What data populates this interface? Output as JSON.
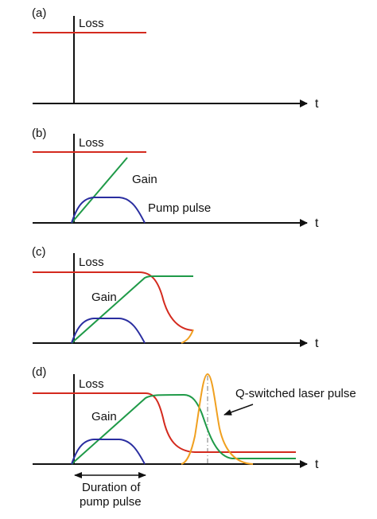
{
  "panels": [
    {
      "id": "a",
      "label": "(a)",
      "loss": "Loss",
      "axis": "t"
    },
    {
      "id": "b",
      "label": "(b)",
      "loss": "Loss",
      "gain": "Gain",
      "pump": "Pump pulse",
      "axis": "t"
    },
    {
      "id": "c",
      "label": "(c)",
      "loss": "Loss",
      "gain": "Gain",
      "axis": "t"
    },
    {
      "id": "d",
      "label": "(d)",
      "loss": "Loss",
      "gain": "Gain",
      "laser": "Q-switched laser pulse",
      "axis": "t",
      "duration_line1": "Duration of",
      "duration_line2": "pump pulse"
    }
  ],
  "colors": {
    "loss": "#d42a1e",
    "gain": "#1f9a48",
    "pump": "#2a2ea0",
    "laser": "#f0a020",
    "axis": "#111111"
  }
}
